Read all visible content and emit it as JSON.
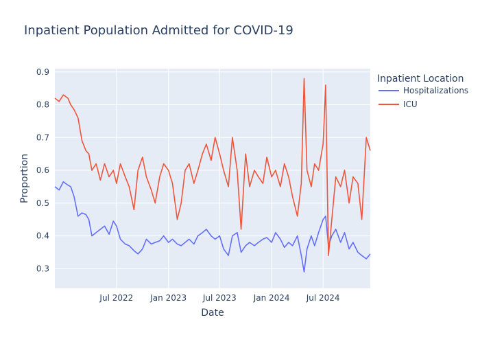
{
  "chart_data": {
    "type": "line",
    "title": "Inpatient Population Admitted for COVID-19",
    "xlabel": "Date",
    "ylabel": "Proportion",
    "legend_title": "Inpatient Location",
    "legend_position": "top-right, outside plot",
    "grid": true,
    "x_range": [
      "2021-11-25",
      "2024-12-15"
    ],
    "y_range": [
      0.24,
      0.91
    ],
    "x_ticks": [
      {
        "value": "2022-07-01",
        "label": "Jul 2022"
      },
      {
        "value": "2023-01-01",
        "label": "Jan 2023"
      },
      {
        "value": "2023-07-01",
        "label": "Jul 2023"
      },
      {
        "value": "2024-01-01",
        "label": "Jan 2024"
      },
      {
        "value": "2024-07-01",
        "label": "Jul 2024"
      }
    ],
    "y_ticks": [
      {
        "value": 0.3,
        "label": "0.3"
      },
      {
        "value": 0.4,
        "label": "0.4"
      },
      {
        "value": 0.5,
        "label": "0.5"
      },
      {
        "value": 0.6,
        "label": "0.6"
      },
      {
        "value": 0.7,
        "label": "0.7"
      },
      {
        "value": 0.8,
        "label": "0.8"
      },
      {
        "value": 0.9,
        "label": "0.9"
      }
    ],
    "series": [
      {
        "name": "Hospitalizations",
        "color": "#636efa",
        "points": [
          [
            "2021-11-25",
            0.55
          ],
          [
            "2021-12-10",
            0.54
          ],
          [
            "2021-12-25",
            0.565
          ],
          [
            "2022-01-10",
            0.555
          ],
          [
            "2022-01-20",
            0.55
          ],
          [
            "2022-02-01",
            0.52
          ],
          [
            "2022-02-15",
            0.46
          ],
          [
            "2022-03-01",
            0.47
          ],
          [
            "2022-03-15",
            0.465
          ],
          [
            "2022-03-25",
            0.45
          ],
          [
            "2022-04-05",
            0.4
          ],
          [
            "2022-04-20",
            0.41
          ],
          [
            "2022-05-05",
            0.42
          ],
          [
            "2022-05-20",
            0.43
          ],
          [
            "2022-06-05",
            0.405
          ],
          [
            "2022-06-20",
            0.445
          ],
          [
            "2022-07-01",
            0.43
          ],
          [
            "2022-07-15",
            0.39
          ],
          [
            "2022-08-01",
            0.375
          ],
          [
            "2022-08-15",
            0.37
          ],
          [
            "2022-09-01",
            0.355
          ],
          [
            "2022-09-15",
            0.345
          ],
          [
            "2022-10-01",
            0.36
          ],
          [
            "2022-10-15",
            0.39
          ],
          [
            "2022-11-01",
            0.375
          ],
          [
            "2022-11-15",
            0.38
          ],
          [
            "2022-12-01",
            0.385
          ],
          [
            "2022-12-15",
            0.4
          ],
          [
            "2023-01-01",
            0.38
          ],
          [
            "2023-01-15",
            0.39
          ],
          [
            "2023-02-01",
            0.375
          ],
          [
            "2023-02-15",
            0.37
          ],
          [
            "2023-03-01",
            0.38
          ],
          [
            "2023-03-15",
            0.39
          ],
          [
            "2023-04-01",
            0.375
          ],
          [
            "2023-04-15",
            0.4
          ],
          [
            "2023-05-01",
            0.41
          ],
          [
            "2023-05-15",
            0.42
          ],
          [
            "2023-06-01",
            0.4
          ],
          [
            "2023-06-15",
            0.39
          ],
          [
            "2023-07-01",
            0.4
          ],
          [
            "2023-07-15",
            0.36
          ],
          [
            "2023-08-01",
            0.34
          ],
          [
            "2023-08-15",
            0.4
          ],
          [
            "2023-09-01",
            0.41
          ],
          [
            "2023-09-15",
            0.35
          ],
          [
            "2023-10-01",
            0.37
          ],
          [
            "2023-10-15",
            0.38
          ],
          [
            "2023-11-01",
            0.37
          ],
          [
            "2023-11-15",
            0.38
          ],
          [
            "2023-12-01",
            0.39
          ],
          [
            "2023-12-15",
            0.395
          ],
          [
            "2024-01-01",
            0.38
          ],
          [
            "2024-01-15",
            0.41
          ],
          [
            "2024-02-01",
            0.39
          ],
          [
            "2024-02-15",
            0.365
          ],
          [
            "2024-03-01",
            0.38
          ],
          [
            "2024-03-15",
            0.37
          ],
          [
            "2024-04-01",
            0.4
          ],
          [
            "2024-04-15",
            0.34
          ],
          [
            "2024-04-25",
            0.29
          ],
          [
            "2024-05-05",
            0.36
          ],
          [
            "2024-05-20",
            0.4
          ],
          [
            "2024-06-01",
            0.37
          ],
          [
            "2024-06-15",
            0.41
          ],
          [
            "2024-07-01",
            0.45
          ],
          [
            "2024-07-10",
            0.46
          ],
          [
            "2024-07-20",
            0.37
          ],
          [
            "2024-08-01",
            0.4
          ],
          [
            "2024-08-15",
            0.42
          ],
          [
            "2024-09-01",
            0.38
          ],
          [
            "2024-09-15",
            0.41
          ],
          [
            "2024-10-01",
            0.36
          ],
          [
            "2024-10-15",
            0.38
          ],
          [
            "2024-11-01",
            0.35
          ],
          [
            "2024-11-15",
            0.34
          ],
          [
            "2024-12-01",
            0.33
          ],
          [
            "2024-12-15",
            0.345
          ]
        ]
      },
      {
        "name": "ICU",
        "color": "#ef553b",
        "points": [
          [
            "2021-11-25",
            0.82
          ],
          [
            "2021-12-10",
            0.81
          ],
          [
            "2021-12-25",
            0.83
          ],
          [
            "2022-01-10",
            0.82
          ],
          [
            "2022-01-20",
            0.8
          ],
          [
            "2022-02-01",
            0.785
          ],
          [
            "2022-02-15",
            0.76
          ],
          [
            "2022-03-01",
            0.69
          ],
          [
            "2022-03-15",
            0.66
          ],
          [
            "2022-03-25",
            0.65
          ],
          [
            "2022-04-05",
            0.6
          ],
          [
            "2022-04-20",
            0.62
          ],
          [
            "2022-05-05",
            0.57
          ],
          [
            "2022-05-20",
            0.62
          ],
          [
            "2022-06-05",
            0.58
          ],
          [
            "2022-06-20",
            0.6
          ],
          [
            "2022-07-01",
            0.56
          ],
          [
            "2022-07-15",
            0.62
          ],
          [
            "2022-08-01",
            0.58
          ],
          [
            "2022-08-15",
            0.55
          ],
          [
            "2022-09-01",
            0.48
          ],
          [
            "2022-09-15",
            0.6
          ],
          [
            "2022-10-01",
            0.64
          ],
          [
            "2022-10-15",
            0.58
          ],
          [
            "2022-11-01",
            0.54
          ],
          [
            "2022-11-15",
            0.5
          ],
          [
            "2022-12-01",
            0.58
          ],
          [
            "2022-12-15",
            0.62
          ],
          [
            "2023-01-01",
            0.6
          ],
          [
            "2023-01-15",
            0.56
          ],
          [
            "2023-02-01",
            0.45
          ],
          [
            "2023-02-15",
            0.5
          ],
          [
            "2023-03-01",
            0.6
          ],
          [
            "2023-03-15",
            0.62
          ],
          [
            "2023-04-01",
            0.56
          ],
          [
            "2023-04-15",
            0.6
          ],
          [
            "2023-05-01",
            0.65
          ],
          [
            "2023-05-15",
            0.68
          ],
          [
            "2023-06-01",
            0.63
          ],
          [
            "2023-06-15",
            0.7
          ],
          [
            "2023-07-01",
            0.65
          ],
          [
            "2023-07-15",
            0.6
          ],
          [
            "2023-08-01",
            0.55
          ],
          [
            "2023-08-15",
            0.7
          ],
          [
            "2023-09-01",
            0.6
          ],
          [
            "2023-09-15",
            0.42
          ],
          [
            "2023-10-01",
            0.65
          ],
          [
            "2023-10-15",
            0.55
          ],
          [
            "2023-11-01",
            0.6
          ],
          [
            "2023-11-15",
            0.58
          ],
          [
            "2023-12-01",
            0.56
          ],
          [
            "2023-12-15",
            0.64
          ],
          [
            "2024-01-01",
            0.58
          ],
          [
            "2024-01-15",
            0.6
          ],
          [
            "2024-02-01",
            0.55
          ],
          [
            "2024-02-15",
            0.62
          ],
          [
            "2024-03-01",
            0.58
          ],
          [
            "2024-03-15",
            0.52
          ],
          [
            "2024-04-01",
            0.46
          ],
          [
            "2024-04-15",
            0.56
          ],
          [
            "2024-04-25",
            0.88
          ],
          [
            "2024-05-05",
            0.6
          ],
          [
            "2024-05-20",
            0.55
          ],
          [
            "2024-06-01",
            0.62
          ],
          [
            "2024-06-15",
            0.6
          ],
          [
            "2024-07-01",
            0.68
          ],
          [
            "2024-07-10",
            0.86
          ],
          [
            "2024-07-20",
            0.34
          ],
          [
            "2024-08-01",
            0.45
          ],
          [
            "2024-08-15",
            0.58
          ],
          [
            "2024-09-01",
            0.55
          ],
          [
            "2024-09-15",
            0.6
          ],
          [
            "2024-10-01",
            0.5
          ],
          [
            "2024-10-15",
            0.58
          ],
          [
            "2024-11-01",
            0.56
          ],
          [
            "2024-11-15",
            0.45
          ],
          [
            "2024-12-01",
            0.7
          ],
          [
            "2024-12-15",
            0.66
          ]
        ]
      }
    ]
  }
}
